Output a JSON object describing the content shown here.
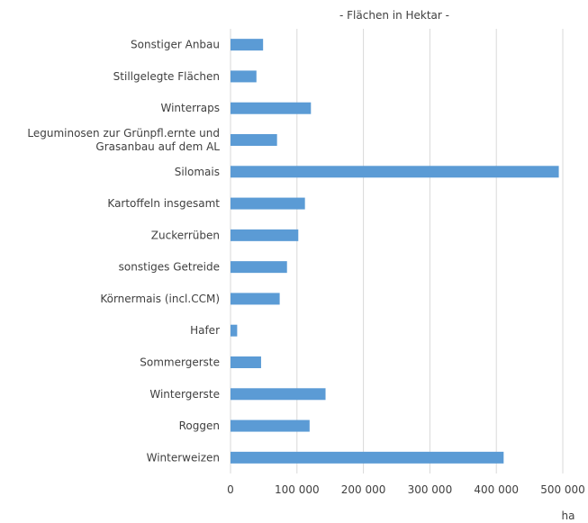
{
  "chart_data": {
    "type": "bar",
    "orientation": "horizontal",
    "title": "",
    "subtitle": "- Flächen in Hektar -",
    "xlabel": "ha",
    "ylabel": "",
    "xlim": [
      0,
      500000
    ],
    "grid": true,
    "legend": "none",
    "bar_color": "#5b9bd5",
    "categories": [
      [
        "Sonstiger Anbau"
      ],
      [
        "Stillgelegte Flächen"
      ],
      [
        "Winterraps"
      ],
      [
        "Leguminosen zur Grünpfl.ernte und",
        "Grasanbau auf dem AL"
      ],
      [
        "Silomais"
      ],
      [
        "Kartoffeln insgesamt"
      ],
      [
        "Zuckerrüben"
      ],
      [
        "sonstiges Getreide"
      ],
      [
        "Körnermais (incl.CCM)"
      ],
      [
        "Hafer"
      ],
      [
        "Sommergerste"
      ],
      [
        "Wintergerste"
      ],
      [
        "Roggen"
      ],
      [
        "Winterweizen"
      ]
    ],
    "values": [
      49000,
      39000,
      121000,
      70000,
      494000,
      112000,
      102000,
      85000,
      74000,
      10000,
      46000,
      143000,
      119000,
      411000
    ],
    "ticks": [
      {
        "value": 0,
        "label": "0"
      },
      {
        "value": 100000,
        "label": "100 000"
      },
      {
        "value": 200000,
        "label": "200 000"
      },
      {
        "value": 300000,
        "label": "300 000"
      },
      {
        "value": 400000,
        "label": "400 000"
      },
      {
        "value": 500000,
        "label": "500 000"
      }
    ]
  }
}
